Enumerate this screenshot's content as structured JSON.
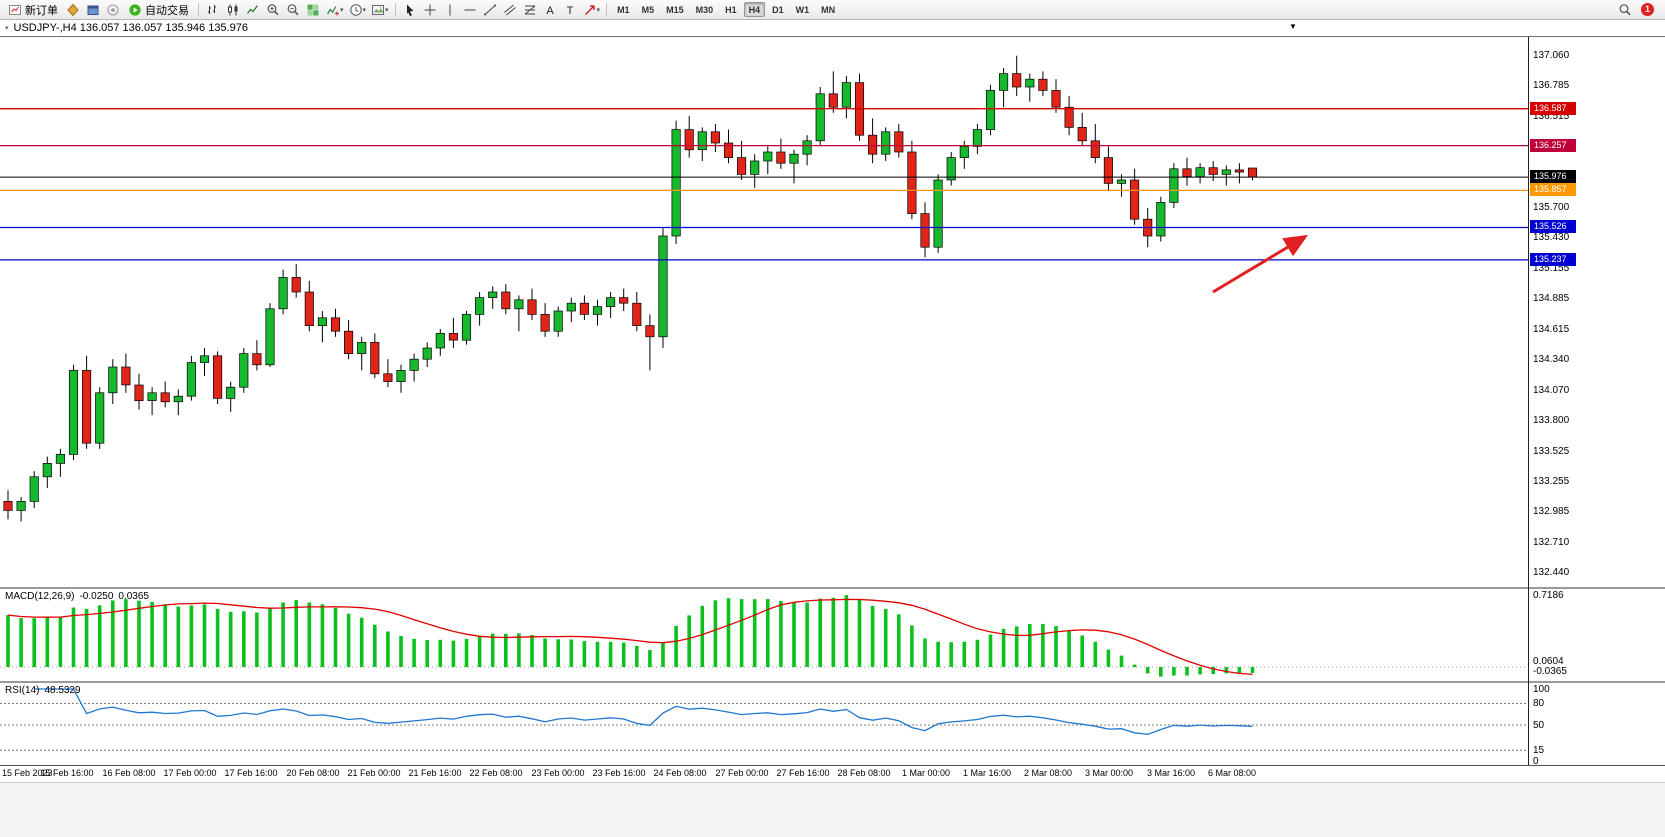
{
  "toolbar": {
    "new_order_label": "新订单",
    "auto_trading_label": "自动交易",
    "left_icons": [
      "market-watch-icon",
      "navigator-icon",
      "expert-advisor-icon"
    ],
    "chart_type_icons": [
      "bar-chart-icon",
      "candlestick-icon",
      "line-chart-icon"
    ],
    "zoom_icons": [
      "zoom-in-icon",
      "zoom-out-icon"
    ],
    "window_icons": [
      "tile-windows-icon",
      "indicators-icon",
      "periods-icon",
      "templates-icon"
    ],
    "drawing_icons": [
      "cursor-icon",
      "crosshair-icon",
      "vertical-line-icon",
      "horizontal-line-icon",
      "trendline-icon",
      "channel-icon",
      "fibonacci-icon",
      "text-icon",
      "label-icon",
      "arrows-icon"
    ],
    "timeframes": [
      "M1",
      "M5",
      "M15",
      "M30",
      "H1",
      "H4",
      "D1",
      "W1",
      "MN"
    ],
    "active_timeframe": "H4",
    "right_icons": [
      "search-icon"
    ],
    "notification_count": "1"
  },
  "chart": {
    "header": "USDJPY-,H4  136.057 136.057 135.946 135.976",
    "symbol": "USDJPY-",
    "period": "H4"
  },
  "price_axis": {
    "ticks": [
      "137.060",
      "136.785",
      "136.515",
      "135.700",
      "135.430",
      "135.155",
      "134.885",
      "134.615",
      "134.340",
      "134.070",
      "133.800",
      "133.525",
      "133.255",
      "132.985",
      "132.710",
      "132.440"
    ],
    "levels": [
      {
        "label": "136.587",
        "price": 136.587,
        "color": "#d40000"
      },
      {
        "label": "136.257",
        "price": 136.257,
        "color": "#c00038"
      },
      {
        "label": "135.976",
        "price": 135.976,
        "color": "#000000"
      },
      {
        "label": "135.857",
        "price": 135.857,
        "color": "#ff9800"
      },
      {
        "label": "135.526",
        "price": 135.526,
        "color": "#0000d2"
      },
      {
        "label": "135.237",
        "price": 135.237,
        "color": "#0000d2"
      }
    ]
  },
  "macd": {
    "label": "MACD(12,26,9)",
    "main_value": "-0.0250",
    "signal_value": "0.0365",
    "scale_labels": [
      {
        "text": "0.7186",
        "value": 0.7186
      },
      {
        "text": "0.0604",
        "value": 0.0604
      },
      {
        "text": "-0.0365",
        "value": -0.0365
      }
    ]
  },
  "rsi": {
    "label": "RSI(14)",
    "value": "48.5329",
    "levels": [
      "100",
      "80",
      "50",
      "15",
      "0"
    ],
    "guides": [
      80,
      50,
      15
    ]
  },
  "time_axis": [
    "15 Feb 2023",
    "15 Feb 16:00",
    "16 Feb 08:00",
    "17 Feb 00:00",
    "17 Feb 16:00",
    "20 Feb 08:00",
    "21 Feb 00:00",
    "21 Feb 16:00",
    "22 Feb 08:00",
    "23 Feb 00:00",
    "23 Feb 16:00",
    "24 Feb 08:00",
    "27 Feb 00:00",
    "27 Feb 16:00",
    "28 Feb 08:00",
    "1 Mar 00:00",
    "1 Mar 16:00",
    "2 Mar 08:00",
    "3 Mar 00:00",
    "3 Mar 16:00",
    "6 Mar 08:00"
  ],
  "chart_data": {
    "type": "candlestick",
    "symbol": "USDJPY-",
    "timeframe": "H4",
    "current_ohlc": [
      136.057,
      136.057,
      135.946,
      135.976
    ],
    "y_axis_range": [
      132.35,
      137.2
    ],
    "horizontal_levels": [
      136.587,
      136.257,
      135.976,
      135.857,
      135.526,
      135.237
    ],
    "annotation": "red-up-right-arrow",
    "indicators": [
      {
        "name": "MACD",
        "params": [
          12,
          26,
          9
        ],
        "current": [
          -0.025,
          0.0365
        ],
        "scale_max": 0.7186
      },
      {
        "name": "RSI",
        "params": [
          14
        ],
        "current": 48.5329,
        "guide_levels": [
          80,
          50,
          15
        ]
      }
    ],
    "candles": [
      [
        133.08,
        133.18,
        132.92,
        133.0
      ],
      [
        133.0,
        133.12,
        132.9,
        133.08
      ],
      [
        133.08,
        133.35,
        133.02,
        133.3
      ],
      [
        133.3,
        133.48,
        133.2,
        133.42
      ],
      [
        133.42,
        133.55,
        133.3,
        133.5
      ],
      [
        133.5,
        134.3,
        133.45,
        134.25
      ],
      [
        134.25,
        134.38,
        133.55,
        133.6
      ],
      [
        133.6,
        134.1,
        133.55,
        134.05
      ],
      [
        134.05,
        134.35,
        133.95,
        134.28
      ],
      [
        134.28,
        134.4,
        134.05,
        134.12
      ],
      [
        134.12,
        134.22,
        133.9,
        133.98
      ],
      [
        133.98,
        134.1,
        133.85,
        134.05
      ],
      [
        134.05,
        134.15,
        133.92,
        133.97
      ],
      [
        133.97,
        134.08,
        133.85,
        134.02
      ],
      [
        134.02,
        134.38,
        133.98,
        134.32
      ],
      [
        134.32,
        134.45,
        134.2,
        134.38
      ],
      [
        134.38,
        134.42,
        133.95,
        134.0
      ],
      [
        134.0,
        134.15,
        133.88,
        134.1
      ],
      [
        134.1,
        134.45,
        134.05,
        134.4
      ],
      [
        134.4,
        134.52,
        134.25,
        134.3
      ],
      [
        134.3,
        134.85,
        134.28,
        134.8
      ],
      [
        134.8,
        135.15,
        134.75,
        135.08
      ],
      [
        135.08,
        135.2,
        134.9,
        134.95
      ],
      [
        134.95,
        135.05,
        134.6,
        134.65
      ],
      [
        134.65,
        134.78,
        134.5,
        134.72
      ],
      [
        134.72,
        134.8,
        134.55,
        134.6
      ],
      [
        134.6,
        134.7,
        134.35,
        134.4
      ],
      [
        134.4,
        134.55,
        134.25,
        134.5
      ],
      [
        134.5,
        134.58,
        134.18,
        134.22
      ],
      [
        134.22,
        134.35,
        134.1,
        134.15
      ],
      [
        134.15,
        134.3,
        134.05,
        134.25
      ],
      [
        134.25,
        134.4,
        134.15,
        134.35
      ],
      [
        134.35,
        134.5,
        134.28,
        134.45
      ],
      [
        134.45,
        134.62,
        134.38,
        134.58
      ],
      [
        134.58,
        134.72,
        134.45,
        134.52
      ],
      [
        134.52,
        134.78,
        134.48,
        134.75
      ],
      [
        134.75,
        134.95,
        134.65,
        134.9
      ],
      [
        134.9,
        135.0,
        134.8,
        134.95
      ],
      [
        134.95,
        135.02,
        134.75,
        134.8
      ],
      [
        134.8,
        134.92,
        134.6,
        134.88
      ],
      [
        134.88,
        134.98,
        134.7,
        134.75
      ],
      [
        134.75,
        134.85,
        134.55,
        134.6
      ],
      [
        134.6,
        134.82,
        134.55,
        134.78
      ],
      [
        134.78,
        134.9,
        134.68,
        134.85
      ],
      [
        134.85,
        134.92,
        134.7,
        134.75
      ],
      [
        134.75,
        134.88,
        134.65,
        134.82
      ],
      [
        134.82,
        134.95,
        134.72,
        134.9
      ],
      [
        134.9,
        134.98,
        134.78,
        134.85
      ],
      [
        134.85,
        134.95,
        134.6,
        134.65
      ],
      [
        134.65,
        134.75,
        134.25,
        134.55
      ],
      [
        134.55,
        135.52,
        134.45,
        135.45
      ],
      [
        135.45,
        136.48,
        135.38,
        136.4
      ],
      [
        136.4,
        136.52,
        136.15,
        136.22
      ],
      [
        136.22,
        136.42,
        136.12,
        136.38
      ],
      [
        136.38,
        136.45,
        136.2,
        136.28
      ],
      [
        136.28,
        136.4,
        136.1,
        136.15
      ],
      [
        136.15,
        136.3,
        135.95,
        136.0
      ],
      [
        136.0,
        136.18,
        135.88,
        136.12
      ],
      [
        136.12,
        136.25,
        136.0,
        136.2
      ],
      [
        136.2,
        136.32,
        136.05,
        136.1
      ],
      [
        136.1,
        136.22,
        135.92,
        136.18
      ],
      [
        136.18,
        136.35,
        136.08,
        136.3
      ],
      [
        136.3,
        136.78,
        136.25,
        136.72
      ],
      [
        136.72,
        136.92,
        136.55,
        136.6
      ],
      [
        136.6,
        136.88,
        136.5,
        136.82
      ],
      [
        136.82,
        136.9,
        136.3,
        136.35
      ],
      [
        136.35,
        136.5,
        136.1,
        136.18
      ],
      [
        136.18,
        136.42,
        136.12,
        136.38
      ],
      [
        136.38,
        136.45,
        136.15,
        136.2
      ],
      [
        136.2,
        136.3,
        135.6,
        135.65
      ],
      [
        135.65,
        135.75,
        135.26,
        135.35
      ],
      [
        135.35,
        136.0,
        135.3,
        135.95
      ],
      [
        135.95,
        136.2,
        135.9,
        136.15
      ],
      [
        136.15,
        136.3,
        136.05,
        136.25
      ],
      [
        136.25,
        136.45,
        136.18,
        136.4
      ],
      [
        136.4,
        136.8,
        136.35,
        136.75
      ],
      [
        136.75,
        136.95,
        136.6,
        136.9
      ],
      [
        136.9,
        137.06,
        136.7,
        136.78
      ],
      [
        136.78,
        136.9,
        136.65,
        136.85
      ],
      [
        136.85,
        136.92,
        136.7,
        136.75
      ],
      [
        136.75,
        136.85,
        136.55,
        136.6
      ],
      [
        136.6,
        136.7,
        136.35,
        136.42
      ],
      [
        136.42,
        136.55,
        136.25,
        136.3
      ],
      [
        136.3,
        136.45,
        136.1,
        136.15
      ],
      [
        136.15,
        136.25,
        135.85,
        135.92
      ],
      [
        135.92,
        136.0,
        135.8,
        135.95
      ],
      [
        135.95,
        136.05,
        135.55,
        135.6
      ],
      [
        135.6,
        135.7,
        135.35,
        135.45
      ],
      [
        135.45,
        135.8,
        135.4,
        135.75
      ],
      [
        135.75,
        136.1,
        135.7,
        136.05
      ],
      [
        136.05,
        136.15,
        135.9,
        135.98
      ],
      [
        135.98,
        136.1,
        135.92,
        136.06
      ],
      [
        136.06,
        136.12,
        135.94,
        136.0
      ],
      [
        136.0,
        136.08,
        135.9,
        136.04
      ],
      [
        136.04,
        136.1,
        135.92,
        136.02
      ],
      [
        136.057,
        136.057,
        135.946,
        135.976
      ]
    ]
  }
}
